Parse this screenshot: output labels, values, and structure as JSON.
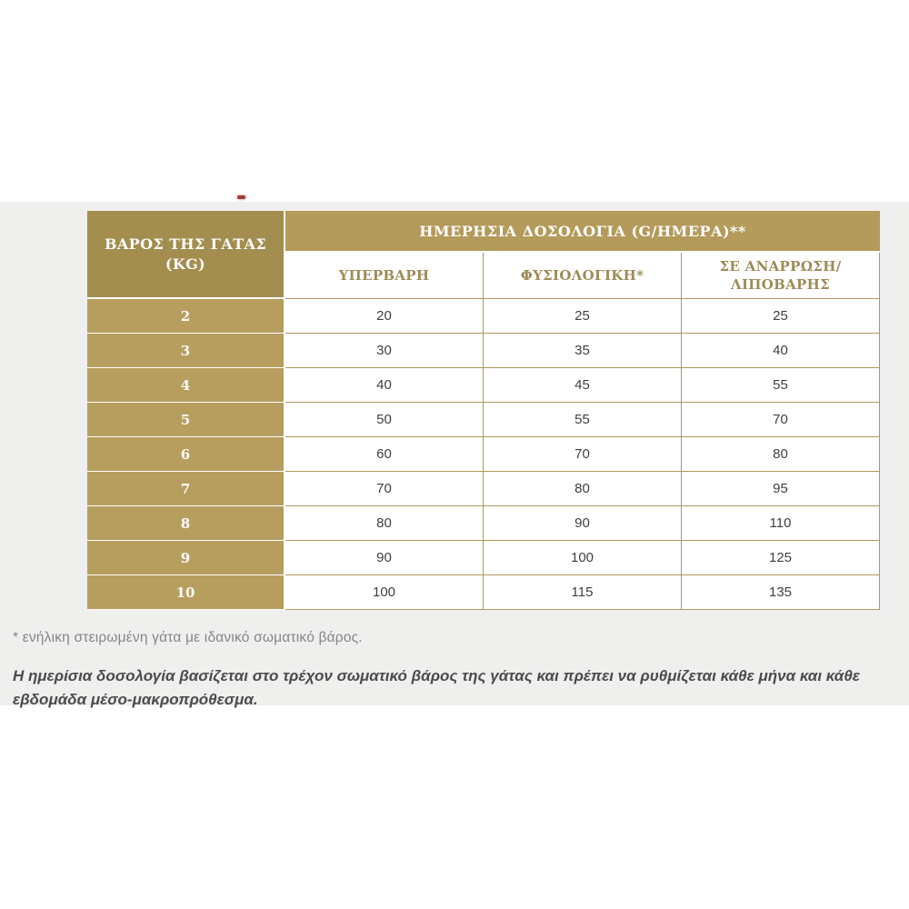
{
  "colors": {
    "page_background": "#ffffff",
    "band_background": "#efefee",
    "main_header_gold": "#b49a5b",
    "corner_header_gold": "#a38d4f",
    "weight_cell_gold": "#b89e5e",
    "cell_border_gold": "#b1975b",
    "subheader_text_gold": "#9e8b56",
    "value_text": "#3f3f3f",
    "footnote1_text": "#858585",
    "footnote2_text": "#4b4b4b",
    "artifact_red": "#a03a3a"
  },
  "table": {
    "corner_header_line1": "ΒΑΡΟΣ ΤΗΣ ΓΑΤΑΣ",
    "corner_header_line2": "(KG)",
    "main_header": "ΗΜΕΡΗΣΙΑ ΔΟΣΟΛΟΓΙΑ (G/ΗΜΕΡΑ)**",
    "sub_headers": [
      "ΥΠΕΡΒΑΡΗ",
      "ΦΥΣΙΟΛΟΓΙΚΗ*",
      "ΣΕ ΑΝΑΡΡΩΣΗ/ ΛΙΠΟΒΑΡΗΣ"
    ],
    "rows": [
      {
        "weight": "2",
        "values": [
          "20",
          "25",
          "25"
        ]
      },
      {
        "weight": "3",
        "values": [
          "30",
          "35",
          "40"
        ]
      },
      {
        "weight": "4",
        "values": [
          "40",
          "45",
          "55"
        ]
      },
      {
        "weight": "5",
        "values": [
          "50",
          "55",
          "70"
        ]
      },
      {
        "weight": "6",
        "values": [
          "60",
          "70",
          "80"
        ]
      },
      {
        "weight": "7",
        "values": [
          "70",
          "80",
          "95"
        ]
      },
      {
        "weight": "8",
        "values": [
          "80",
          "90",
          "110"
        ]
      },
      {
        "weight": "9",
        "values": [
          "90",
          "100",
          "125"
        ]
      },
      {
        "weight": "10",
        "values": [
          "100",
          "115",
          "135"
        ]
      }
    ]
  },
  "footnotes": {
    "note1": "* ενήλικη στειρωμένη γάτα με ιδανικό σωματικό βάρος.",
    "note2": "Η ημερίσια δοσολογία βασίζεται στο τρέχον σωματικό βάρος της γάτας και πρέπει να ρυθμίζεται κάθε μήνα και κάθε εβδομάδα μέσο-μακροπρόθεσμα."
  }
}
